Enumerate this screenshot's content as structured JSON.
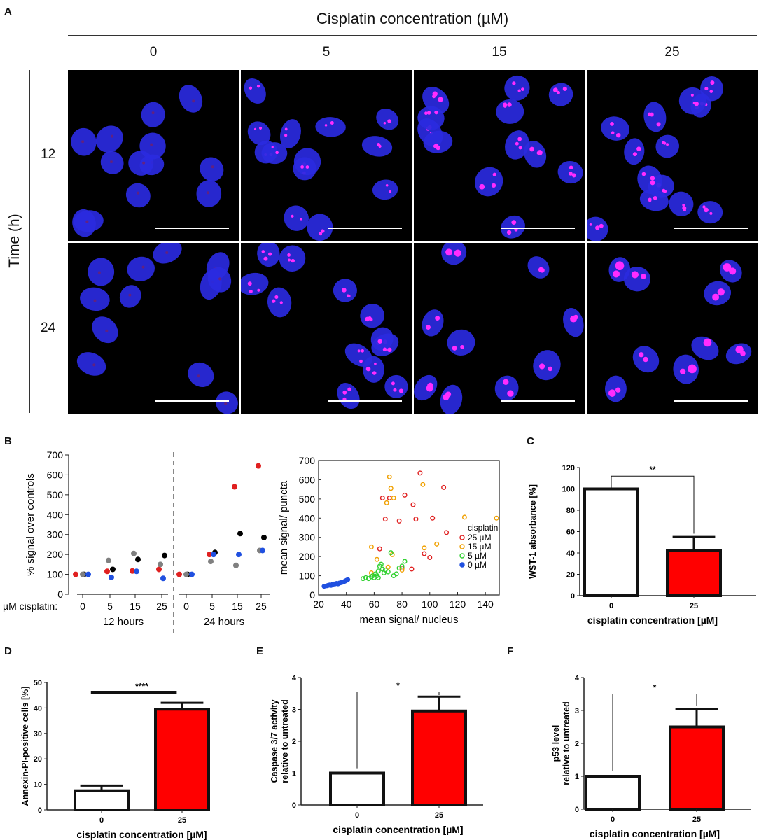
{
  "panel_a": {
    "label": "A",
    "column_header": "Cisplatin concentration (µM)",
    "columns": [
      "0",
      "5",
      "15",
      "25"
    ],
    "row_header": "Time (h)",
    "rows": [
      "12",
      "24"
    ],
    "dye_colors": {
      "nucleus": "#2a2ae0",
      "puncta": "#ff2cff",
      "background": "#000000"
    }
  },
  "panel_b": {
    "label": "B",
    "left_ylabel": "% signal over controls",
    "left_x_prefix": "µM cisplatin:",
    "group_labels": [
      "12 hours",
      "24 hours"
    ],
    "right_xlabel": "mean signal/ nucleus",
    "right_ylabel": "mean signal/ puncta",
    "legend_title": "cisplatin",
    "legend": [
      "25 µM",
      "15 µM",
      "5 µM",
      "0 µM"
    ]
  },
  "panel_c": {
    "label": "C",
    "sig": "**"
  },
  "panel_d": {
    "label": "D",
    "sig": "****"
  },
  "panel_e": {
    "label": "E",
    "sig": "*"
  },
  "panel_f": {
    "label": "F",
    "sig": "*"
  },
  "chart_data": [
    {
      "id": "B-left",
      "type": "scatter",
      "ylabel": "% signal over controls",
      "ylim": [
        0,
        700
      ],
      "yticks": [
        0,
        100,
        200,
        300,
        400,
        500,
        600,
        700
      ],
      "xticks": [
        "0",
        "5",
        "15",
        "25"
      ],
      "groups": [
        "12 hours",
        "24 hours"
      ],
      "series": [
        {
          "color": "#e02020",
          "values_12h": [
            100,
            115,
            117,
            125
          ],
          "values_24h": [
            100,
            200,
            540,
            645
          ]
        },
        {
          "color": "#000000",
          "values_12h": [
            100,
            125,
            175,
            195
          ],
          "values_24h": [
            100,
            210,
            305,
            285
          ]
        },
        {
          "color": "#808080",
          "values_12h": [
            100,
            170,
            205,
            150
          ],
          "values_24h": [
            100,
            165,
            145,
            220
          ]
        },
        {
          "color": "#2050e0",
          "values_12h": [
            100,
            85,
            115,
            80
          ],
          "values_24h": [
            100,
            200,
            200,
            220
          ]
        }
      ]
    },
    {
      "id": "B-right",
      "type": "scatter",
      "xlabel": "mean signal/ nucleus",
      "ylabel": "mean signal/ puncta",
      "xlim": [
        20,
        150
      ],
      "ylim": [
        0,
        700
      ],
      "xticks": [
        20,
        40,
        60,
        80,
        100,
        120,
        140
      ],
      "yticks": [
        0,
        100,
        200,
        300,
        400,
        500,
        600,
        700
      ],
      "series": [
        {
          "name": "25 µM",
          "color": "#e02020",
          "points": [
            [
              66,
              505
            ],
            [
              71,
              505
            ],
            [
              78,
              385
            ],
            [
              82,
              520
            ],
            [
              88,
              470
            ],
            [
              90,
              395
            ],
            [
              93,
              635
            ],
            [
              96,
              215
            ],
            [
              100,
              195
            ],
            [
              102,
              400
            ],
            [
              110,
              560
            ],
            [
              112,
              325
            ],
            [
              87,
              135
            ],
            [
              64,
              240
            ],
            [
              80,
              140
            ],
            [
              68,
              395
            ]
          ]
        },
        {
          "name": "15 µM",
          "color": "#f0a000",
          "points": [
            [
              71,
              615
            ],
            [
              72,
              555
            ],
            [
              69,
              480
            ],
            [
              74,
              505
            ],
            [
              95,
              575
            ],
            [
              125,
              405
            ],
            [
              148,
              400
            ],
            [
              105,
              265
            ],
            [
              96,
              245
            ],
            [
              58,
              250
            ],
            [
              62,
              185
            ],
            [
              73,
              210
            ],
            [
              80,
              130
            ],
            [
              58,
              115
            ],
            [
              70,
              145
            ]
          ]
        },
        {
          "name": "5 µM",
          "color": "#30d030",
          "points": [
            [
              52,
              85
            ],
            [
              54,
              90
            ],
            [
              56,
              85
            ],
            [
              58,
              95
            ],
            [
              60,
              90
            ],
            [
              61,
              110
            ],
            [
              62,
              100
            ],
            [
              63,
              125
            ],
            [
              64,
              150
            ],
            [
              65,
              160
            ],
            [
              66,
              135
            ],
            [
              67,
              115
            ],
            [
              68,
              130
            ],
            [
              70,
              120
            ],
            [
              72,
              220
            ],
            [
              74,
              100
            ],
            [
              76,
              110
            ],
            [
              78,
              140
            ],
            [
              80,
              150
            ],
            [
              82,
              175
            ],
            [
              63,
              90
            ],
            [
              59,
              100
            ]
          ]
        },
        {
          "name": "0 µM",
          "color": "#2050e0",
          "points": [
            [
              24,
              45
            ],
            [
              26,
              48
            ],
            [
              27,
              50
            ],
            [
              28,
              52
            ],
            [
              29,
              50
            ],
            [
              30,
              55
            ],
            [
              31,
              57
            ],
            [
              32,
              58
            ],
            [
              33,
              60
            ],
            [
              34,
              58
            ],
            [
              35,
              62
            ],
            [
              36,
              64
            ],
            [
              37,
              66
            ],
            [
              38,
              68
            ],
            [
              39,
              72
            ],
            [
              40,
              76
            ],
            [
              41,
              80
            ]
          ]
        }
      ]
    },
    {
      "id": "C",
      "type": "bar",
      "xlabel": "cisplatin concentration [µM]",
      "ylabel": "WST-1 absorbance [%]",
      "categories": [
        "0",
        "25"
      ],
      "values": [
        100,
        42
      ],
      "errors": [
        0,
        13
      ],
      "ylim": [
        0,
        120
      ],
      "yticks": [
        0,
        20,
        40,
        60,
        80,
        100,
        120
      ],
      "colors": [
        "#ffffff",
        "#ff0000"
      ]
    },
    {
      "id": "D",
      "type": "bar",
      "xlabel": "cisplatin concentration [µM]",
      "ylabel": "Annexin-PI-positive cells [%]",
      "categories": [
        "0",
        "25"
      ],
      "values": [
        7.5,
        39.5
      ],
      "errors": [
        2,
        2.5
      ],
      "ylim": [
        0,
        50
      ],
      "yticks": [
        0,
        10,
        20,
        30,
        40,
        50
      ],
      "colors": [
        "#ffffff",
        "#ff0000"
      ]
    },
    {
      "id": "E",
      "type": "bar",
      "xlabel": "cisplatin concentration [µM]",
      "ylabel": "Caspase 3/7 activity relative to untreated",
      "categories": [
        "0",
        "25"
      ],
      "values": [
        1.0,
        2.95
      ],
      "errors": [
        0,
        0.45
      ],
      "ylim": [
        0,
        4
      ],
      "yticks": [
        0,
        1,
        2,
        3,
        4
      ],
      "colors": [
        "#ffffff",
        "#ff0000"
      ]
    },
    {
      "id": "F",
      "type": "bar",
      "xlabel": "cisplatin concentration [µM]",
      "ylabel": "p53 level relative to untreated",
      "categories": [
        "0",
        "25"
      ],
      "values": [
        1.0,
        2.5
      ],
      "errors": [
        0,
        0.55
      ],
      "ylim": [
        0,
        4
      ],
      "yticks": [
        0,
        1,
        2,
        3,
        4
      ],
      "colors": [
        "#ffffff",
        "#ff0000"
      ]
    }
  ]
}
